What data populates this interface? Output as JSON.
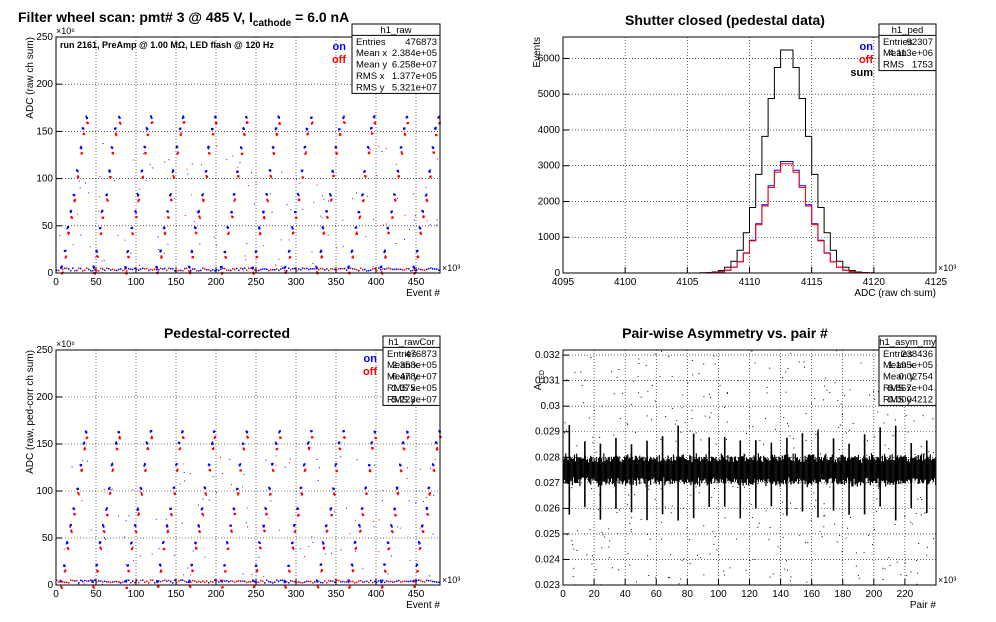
{
  "panels": [
    {
      "id": "raw",
      "title_parts": [
        "Filter wheel scan: pmt#   3 @   485 V, I",
        "cathode",
        " = 6.0 nA"
      ],
      "annotation": "run 2161, PreAmp @ 1.00 MΩ, LED flash @  120 Hz",
      "legend": [
        {
          "label": "on",
          "color": "#0000ff"
        },
        {
          "label": "off",
          "color": "#ff0000"
        }
      ],
      "stats_title": "h1_raw",
      "stats": [
        [
          "Entries",
          "476873"
        ],
        [
          "Mean x",
          "2.384e+05"
        ],
        [
          "Mean y",
          "6.258e+07"
        ],
        [
          "RMS x",
          "1.377e+05"
        ],
        [
          "RMS y",
          "5.321e+07"
        ]
      ],
      "xlabel": "Event #",
      "ylabel": "ADC (raw ch sum)",
      "xexp": "×10³",
      "yexp": "×10⁶"
    },
    {
      "id": "ped",
      "title_parts": [
        "Shutter closed (pedestal data)"
      ],
      "legend": [
        {
          "label": "on",
          "color": "#0000ff"
        },
        {
          "label": "off",
          "color": "#ff0000"
        },
        {
          "label": "sum",
          "color": "#000000"
        }
      ],
      "stats_title": "h1_ped",
      "stats": [
        [
          "Entries",
          "92307"
        ],
        [
          "Mean",
          "4.113e+06"
        ],
        [
          "RMS",
          "1753"
        ]
      ],
      "xlabel": "ADC (raw ch sum)",
      "ylabel": "Events",
      "xexp": "×10³"
    },
    {
      "id": "cor",
      "title_parts": [
        "Pedestal-corrected"
      ],
      "legend": [
        {
          "label": "on",
          "color": "#0000ff"
        },
        {
          "label": "off",
          "color": "#ff0000"
        }
      ],
      "stats_title": "h1_rawCor",
      "stats": [
        [
          "Entries",
          "476873"
        ],
        [
          "Mean x",
          "2.358e+05"
        ],
        [
          "Mean y",
          "6.478e+07"
        ],
        [
          "RMS x",
          "1.375e+05"
        ],
        [
          "RMS y",
          "5.223e+07"
        ]
      ],
      "xlabel": "Event #",
      "ylabel": "ADC (raw, ped-corr ch sum)",
      "xexp": "×10³",
      "yexp": "×10⁶"
    },
    {
      "id": "asym",
      "title_parts": [
        "Pair-wise Asymmetry vs. pair #"
      ],
      "stats_title": "h1_asym_my",
      "stats": [
        [
          "Entries",
          "238436"
        ],
        [
          "Mean x",
          "1.195e+05"
        ],
        [
          "Mean y",
          "0.02754"
        ],
        [
          "RMS x",
          "6.867e+04"
        ],
        [
          "RMS y",
          "0.0004212"
        ]
      ],
      "xlabel": "Pair #",
      "ylabel_main": "A",
      "ylabel_sub": "LED",
      "xexp": "×10³"
    }
  ],
  "chart_data": [
    {
      "type": "scatter",
      "id": "raw",
      "x_range": [
        0,
        480
      ],
      "ylim": [
        0,
        250
      ],
      "xticks": [
        0,
        50,
        100,
        150,
        200,
        250,
        300,
        350,
        400,
        450
      ],
      "yticks": [
        0,
        50,
        100,
        150,
        200,
        250
      ],
      "levels": [
        3,
        20,
        45,
        62,
        80,
        105,
        130,
        150,
        162
      ],
      "series": [
        {
          "name": "on",
          "color": "#0000ff"
        },
        {
          "name": "off",
          "color": "#ff0000"
        }
      ]
    },
    {
      "type": "line",
      "id": "ped",
      "x_range": [
        4095,
        4125
      ],
      "ylim": [
        0,
        6600
      ],
      "xticks": [
        4095,
        4100,
        4105,
        4110,
        4115,
        4120,
        4125
      ],
      "yticks": [
        0,
        1000,
        2000,
        3000,
        4000,
        5000,
        6000
      ],
      "series": [
        {
          "name": "sum",
          "color": "#000000",
          "peak": 6300,
          "mean": 4113.0,
          "sigma": 1.75
        },
        {
          "name": "on",
          "color": "#0000ff",
          "peak": 3150,
          "mean": 4113.0,
          "sigma": 1.75
        },
        {
          "name": "off",
          "color": "#ff0000",
          "peak": 3150,
          "mean": 4113.0,
          "sigma": 1.75
        }
      ]
    },
    {
      "type": "scatter",
      "id": "cor",
      "x_range": [
        0,
        480
      ],
      "ylim": [
        0,
        250
      ],
      "xticks": [
        0,
        50,
        100,
        150,
        200,
        250,
        300,
        350,
        400,
        450
      ],
      "yticks": [
        0,
        50,
        100,
        150,
        200,
        250
      ],
      "levels": [
        1,
        18,
        42,
        60,
        78,
        100,
        125,
        148,
        160
      ],
      "series": [
        {
          "name": "on",
          "color": "#0000ff"
        },
        {
          "name": "off",
          "color": "#ff0000"
        }
      ]
    },
    {
      "type": "scatter",
      "id": "asym",
      "x_range": [
        0,
        240
      ],
      "ylim": [
        0.023,
        0.0322
      ],
      "xticks": [
        0,
        20,
        40,
        60,
        80,
        100,
        120,
        140,
        160,
        180,
        200,
        220
      ],
      "yticks": [
        0.023,
        0.024,
        0.025,
        0.026,
        0.027,
        0.028,
        0.029,
        0.03,
        0.031,
        0.032
      ],
      "band_center": 0.0275,
      "band_halfwidth": 0.00045,
      "spike_step": 10,
      "series": [
        {
          "color": "#000000"
        }
      ]
    }
  ]
}
